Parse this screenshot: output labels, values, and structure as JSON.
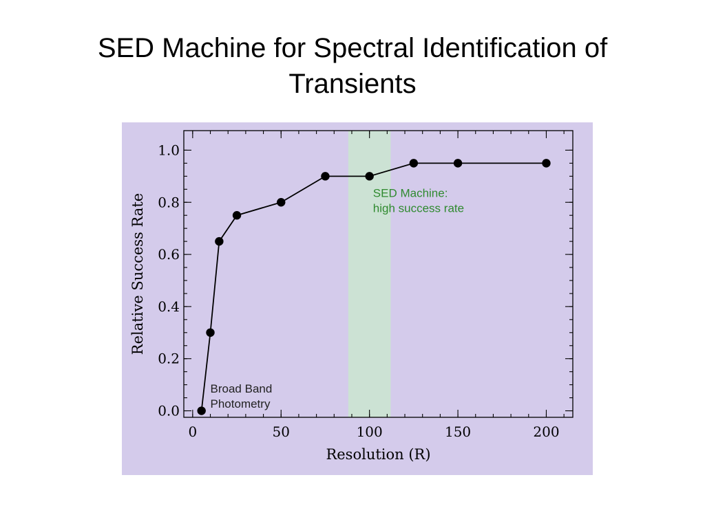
{
  "slide": {
    "title_line1": "SED Machine  for Spectral Identification of",
    "title_line2": "Transients"
  },
  "colors": {
    "panel_background": "#d4cbeb",
    "highlight_band": "#cce2d4",
    "highlight_text": "#2f8a2f",
    "line": "#000000"
  },
  "chart_data": {
    "type": "line",
    "title": "",
    "xlabel": "Resolution (R)",
    "ylabel": "Relative Success Rate",
    "xlim": [
      -5,
      215
    ],
    "ylim": [
      -0.025,
      1.075
    ],
    "x_ticks": [
      0,
      50,
      100,
      150,
      200
    ],
    "y_ticks": [
      0.0,
      0.2,
      0.4,
      0.6,
      0.8,
      1.0
    ],
    "x_tick_labels": [
      "0",
      "50",
      "100",
      "150",
      "200"
    ],
    "y_tick_labels": [
      "0.0",
      "0.2",
      "0.4",
      "0.6",
      "0.8",
      "1.0"
    ],
    "x_minor_step": 10,
    "y_minor_step": 0.05,
    "grid": false,
    "legend": "none",
    "series": [
      {
        "x": [
          5,
          10,
          15,
          25,
          50,
          75,
          100,
          125,
          150,
          200
        ],
        "values": [
          0.0,
          0.3,
          0.65,
          0.75,
          0.8,
          0.9,
          0.9,
          0.95,
          0.95,
          0.95
        ]
      }
    ],
    "highlight_band": {
      "x_start": 88,
      "x_end": 112
    },
    "annotations": [
      {
        "text_lines": [
          "SED Machine:",
          "high success rate"
        ],
        "x": 102,
        "y": 0.82,
        "color": "#2f8a2f"
      },
      {
        "text_lines": [
          "Broad Band",
          "Photometry"
        ],
        "x": 10,
        "y": 0.07,
        "color": "#222222"
      }
    ]
  }
}
